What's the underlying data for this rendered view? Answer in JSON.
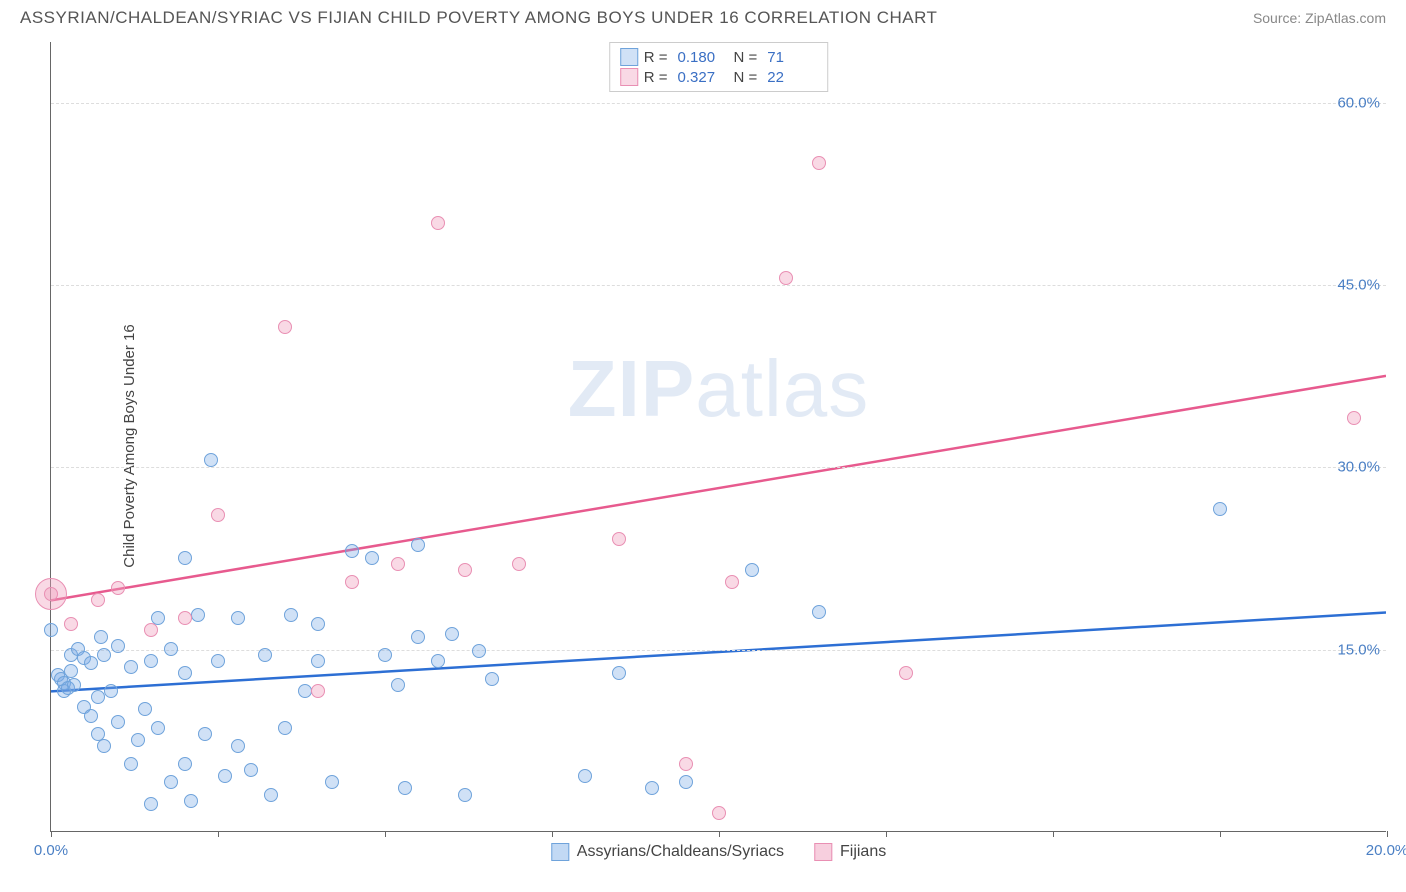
{
  "title": "ASSYRIAN/CHALDEAN/SYRIAC VS FIJIAN CHILD POVERTY AMONG BOYS UNDER 16 CORRELATION CHART",
  "source": "Source: ZipAtlas.com",
  "ylabel": "Child Poverty Among Boys Under 16",
  "watermark_zip": "ZIP",
  "watermark_atlas": "atlas",
  "chart": {
    "type": "scatter",
    "xlim": [
      0,
      20
    ],
    "ylim": [
      0,
      65
    ],
    "xtick_positions": [
      0,
      2.5,
      5,
      7.5,
      10,
      12.5,
      15,
      17.5,
      20
    ],
    "xtick_labels": {
      "0": "0.0%",
      "20": "20.0%"
    },
    "ytick_positions": [
      15,
      30,
      45,
      60
    ],
    "ytick_labels": [
      "15.0%",
      "30.0%",
      "45.0%",
      "60.0%"
    ],
    "background_color": "#ffffff",
    "grid_color": "#dddddd",
    "series": [
      {
        "name": "Assyrians/Chaldeans/Syriacs",
        "fill": "rgba(120,170,230,0.35)",
        "stroke": "#6fa3db",
        "trend_color": "#2d6fd4",
        "r_value": "0.180",
        "n_value": "71",
        "marker_r": 7,
        "trend": {
          "x1": 0,
          "y1": 11.5,
          "x2": 20,
          "y2": 18
        },
        "points": [
          [
            0.0,
            16.5
          ],
          [
            0.1,
            12.8
          ],
          [
            0.15,
            12.5
          ],
          [
            0.2,
            12.2
          ],
          [
            0.2,
            11.5
          ],
          [
            0.25,
            11.8
          ],
          [
            0.3,
            13.2
          ],
          [
            0.3,
            14.5
          ],
          [
            0.35,
            12.0
          ],
          [
            0.4,
            15.0
          ],
          [
            0.5,
            14.2
          ],
          [
            0.5,
            10.2
          ],
          [
            0.6,
            9.5
          ],
          [
            0.6,
            13.8
          ],
          [
            0.7,
            8.0
          ],
          [
            0.7,
            11.0
          ],
          [
            0.75,
            16.0
          ],
          [
            0.8,
            7.0
          ],
          [
            0.8,
            14.5
          ],
          [
            0.9,
            11.5
          ],
          [
            1.0,
            9.0
          ],
          [
            1.0,
            15.2
          ],
          [
            1.2,
            5.5
          ],
          [
            1.2,
            13.5
          ],
          [
            1.3,
            7.5
          ],
          [
            1.4,
            10.0
          ],
          [
            1.5,
            2.2
          ],
          [
            1.5,
            14.0
          ],
          [
            1.6,
            17.5
          ],
          [
            1.6,
            8.5
          ],
          [
            1.8,
            4.0
          ],
          [
            1.8,
            15.0
          ],
          [
            2.0,
            5.5
          ],
          [
            2.0,
            13.0
          ],
          [
            2.0,
            22.5
          ],
          [
            2.1,
            2.5
          ],
          [
            2.2,
            17.8
          ],
          [
            2.3,
            8.0
          ],
          [
            2.4,
            30.5
          ],
          [
            2.5,
            14.0
          ],
          [
            2.6,
            4.5
          ],
          [
            2.8,
            7.0
          ],
          [
            2.8,
            17.5
          ],
          [
            3.0,
            5.0
          ],
          [
            3.2,
            14.5
          ],
          [
            3.3,
            3.0
          ],
          [
            3.5,
            8.5
          ],
          [
            3.6,
            17.8
          ],
          [
            3.8,
            11.5
          ],
          [
            4.0,
            14.0
          ],
          [
            4.2,
            4.0
          ],
          [
            4.5,
            23.0
          ],
          [
            4.8,
            22.5
          ],
          [
            5.0,
            14.5
          ],
          [
            5.2,
            12.0
          ],
          [
            5.3,
            3.5
          ],
          [
            5.5,
            16.0
          ],
          [
            5.5,
            23.5
          ],
          [
            5.8,
            14.0
          ],
          [
            6.0,
            16.2
          ],
          [
            6.2,
            3.0
          ],
          [
            6.4,
            14.8
          ],
          [
            6.6,
            12.5
          ],
          [
            8.0,
            4.5
          ],
          [
            8.5,
            13.0
          ],
          [
            9.5,
            4.0
          ],
          [
            10.5,
            21.5
          ],
          [
            11.5,
            18.0
          ],
          [
            9.0,
            3.5
          ],
          [
            17.5,
            26.5
          ],
          [
            4.0,
            17.0
          ]
        ]
      },
      {
        "name": "Fijians",
        "fill": "rgba(240,160,190,0.4)",
        "stroke": "#e98fb3",
        "trend_color": "#e75a8e",
        "r_value": "0.327",
        "n_value": "22",
        "marker_r": 7,
        "trend": {
          "x1": 0,
          "y1": 19,
          "x2": 20,
          "y2": 37.5
        },
        "points": [
          [
            0.0,
            19.5
          ],
          [
            0.3,
            17.0
          ],
          [
            0.7,
            19.0
          ],
          [
            1.0,
            20.0
          ],
          [
            1.5,
            16.5
          ],
          [
            2.0,
            17.5
          ],
          [
            2.5,
            26.0
          ],
          [
            3.5,
            41.5
          ],
          [
            4.0,
            11.5
          ],
          [
            4.5,
            20.5
          ],
          [
            5.2,
            22.0
          ],
          [
            5.8,
            50.0
          ],
          [
            6.2,
            21.5
          ],
          [
            7.0,
            22.0
          ],
          [
            8.5,
            24.0
          ],
          [
            9.5,
            5.5
          ],
          [
            10.0,
            1.5
          ],
          [
            10.2,
            20.5
          ],
          [
            11.0,
            45.5
          ],
          [
            11.5,
            55.0
          ],
          [
            12.8,
            13.0
          ],
          [
            19.5,
            34.0
          ]
        ],
        "big_point": {
          "x": 0,
          "y": 19.5,
          "r": 16
        }
      }
    ]
  },
  "legend_bottom": [
    {
      "label": "Assyrians/Chaldeans/Syriacs",
      "fill": "rgba(120,170,230,0.45)",
      "stroke": "#6fa3db"
    },
    {
      "label": "Fijians",
      "fill": "rgba(240,160,190,0.5)",
      "stroke": "#e98fb3"
    }
  ]
}
